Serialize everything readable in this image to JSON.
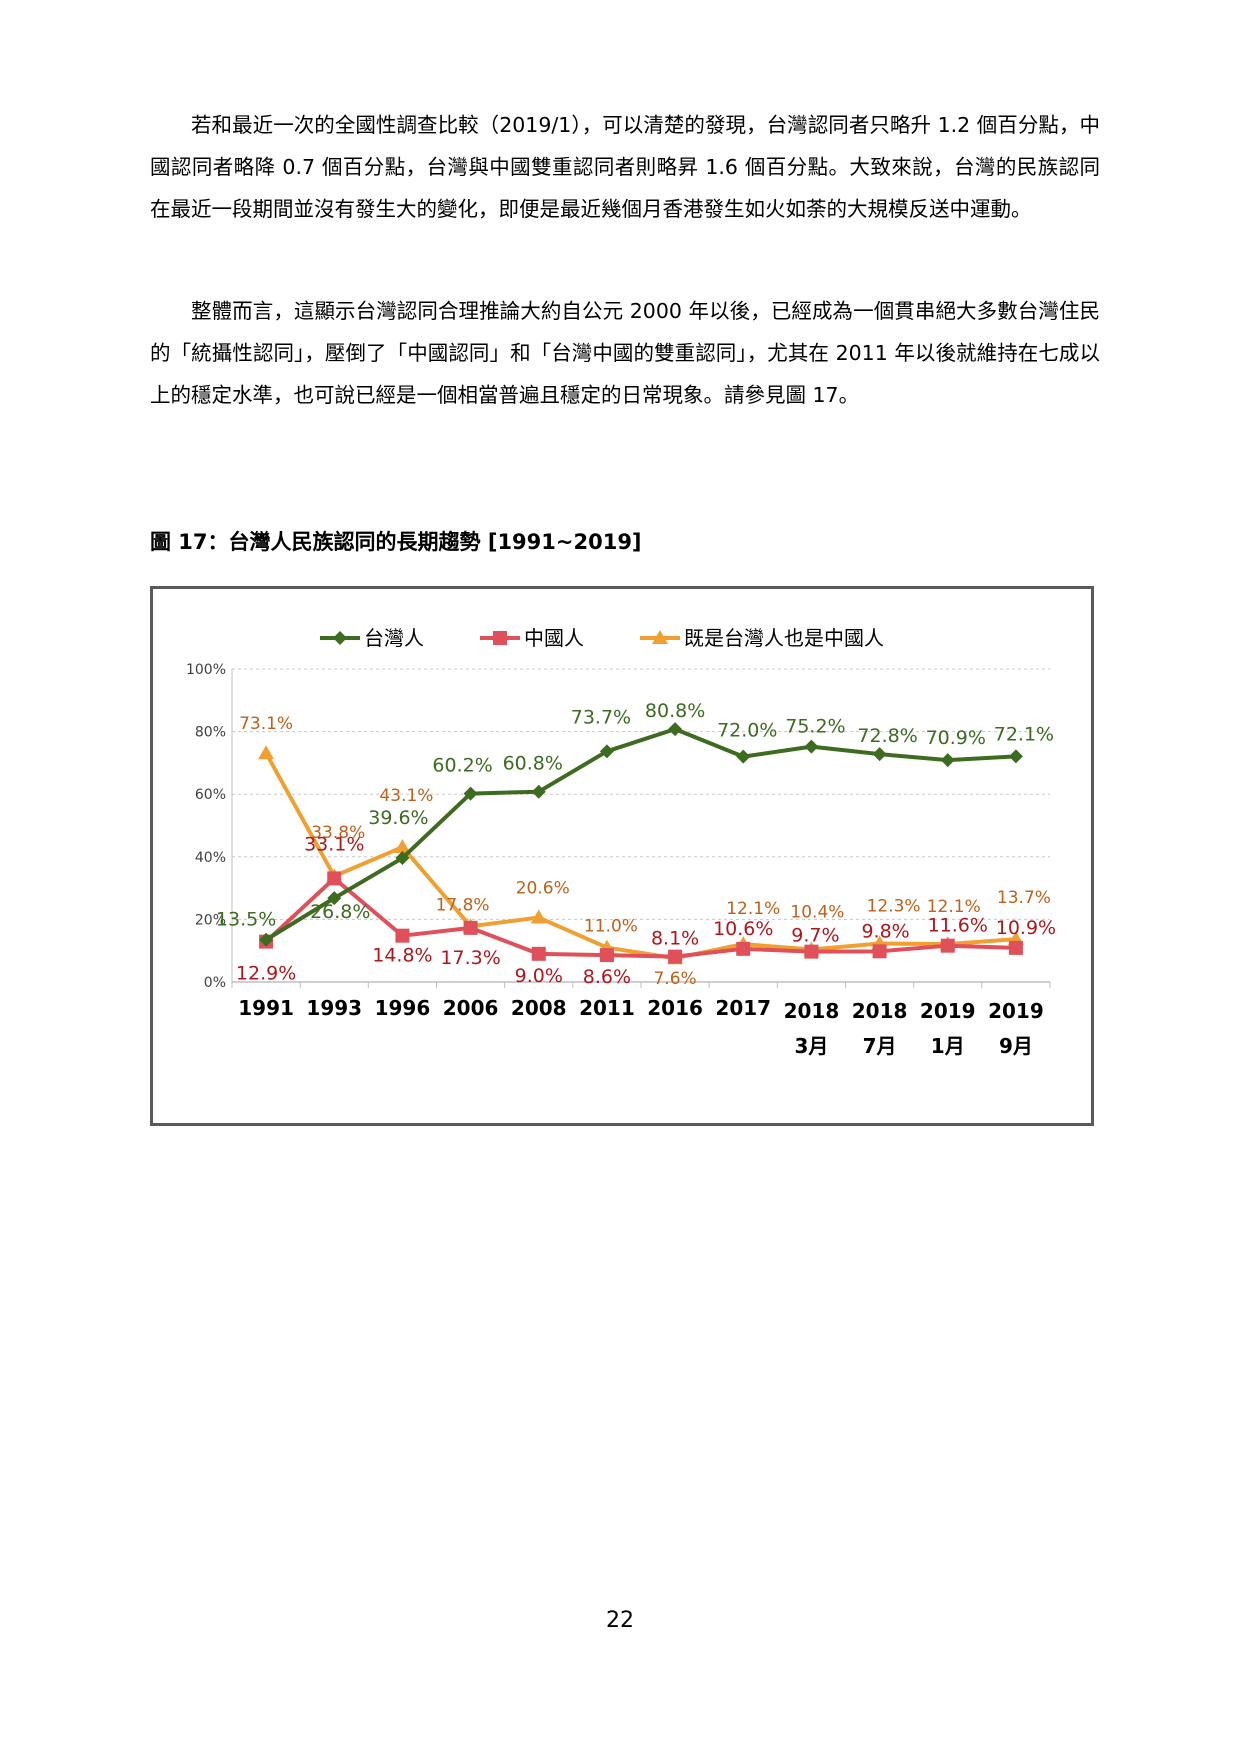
{
  "paragraphs": [
    "若和最近一次的全國性調查比較（2019/1），可以清楚的發現，台灣認同者只略升 1.2 個百分點，中國認同者略降 0.7 個百分點，台灣與中國雙重認同者則略昇 1.6 個百分點。大致來說，台灣的民族認同在最近一段期間並沒有發生大的變化，即便是最近幾個月香港發生如火如荼的大規模反送中運動。",
    "整體而言，這顯示台灣認同合理推論大約自公元 2000 年以後，已經成為一個貫串絕大多數台灣住民的「統攝性認同」，壓倒了「中國認同」和「台灣中國的雙重認同」，尤其在 2011 年以後就維持在七成以上的穩定水準，也可說已經是一個相當普遍且穩定的日常現象。請參見圖 17。"
  ],
  "figure_caption": "圖 17：台灣人民族認同的長期趨勢 [1991~2019]",
  "page_number": "22",
  "chart_data": {
    "type": "line",
    "categories": [
      "1991",
      "1993",
      "1996",
      "2006",
      "2008",
      "2011",
      "2016",
      "2017",
      "2018 3月",
      "2018 7月",
      "2019 1月",
      "2019 9月"
    ],
    "category_lines": [
      [
        "1991"
      ],
      [
        "1993"
      ],
      [
        "1996"
      ],
      [
        "2006"
      ],
      [
        "2008"
      ],
      [
        "2011"
      ],
      [
        "2016"
      ],
      [
        "2017"
      ],
      [
        "2018",
        "3月"
      ],
      [
        "2018",
        "7月"
      ],
      [
        "2019",
        "1月"
      ],
      [
        "2019",
        "9月"
      ]
    ],
    "yticks": [
      "0%",
      "20%",
      "40%",
      "60%",
      "80%",
      "100%"
    ],
    "ylim": [
      0,
      100
    ],
    "grid": true,
    "legend_position": "top",
    "series": [
      {
        "name": "台灣人",
        "color": "#3d6b1f",
        "label_color": "#3d6b1f",
        "marker": "diamond",
        "values": [
          13.5,
          26.8,
          39.6,
          60.2,
          60.8,
          73.7,
          80.8,
          72.0,
          75.2,
          72.8,
          70.9,
          72.1
        ],
        "labels": [
          "13.5%",
          "26.8%",
          "39.6%",
          "60.2%",
          "60.8%",
          "73.7%",
          "80.8%",
          "72.0%",
          "75.2%",
          "72.8%",
          "70.9%",
          "72.1%"
        ]
      },
      {
        "name": "中國人",
        "color": "#e0505a",
        "label_color": "#b0161c",
        "marker": "square",
        "values": [
          12.9,
          33.1,
          14.8,
          17.3,
          9.0,
          8.6,
          8.1,
          10.6,
          9.7,
          9.8,
          11.6,
          10.9
        ],
        "labels": [
          "12.9%",
          "33.1%",
          "14.8%",
          "17.3%",
          "9.0%",
          "8.6%",
          "8.1%",
          "10.6%",
          "9.7%",
          "9.8%",
          "11.6%",
          "10.9%"
        ]
      },
      {
        "name": "既是台灣人也是中國人",
        "color": "#f0a030",
        "label_color": "#c0601a",
        "marker": "triangle",
        "values": [
          73.1,
          33.8,
          43.1,
          17.8,
          20.6,
          11.0,
          7.6,
          12.1,
          10.4,
          12.3,
          12.1,
          13.7
        ],
        "labels": [
          "73.1%",
          "33.8%",
          "43.1%",
          "17.8%",
          "20.6%",
          "11.0%",
          "7.6%",
          "12.1%",
          "10.4%",
          "12.3%",
          "12.1%",
          "13.7%"
        ]
      }
    ]
  }
}
